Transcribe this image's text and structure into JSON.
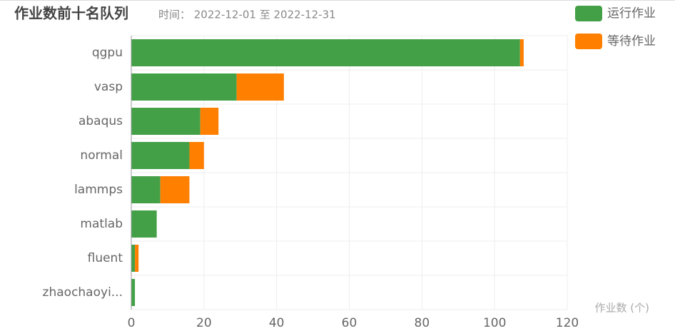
{
  "chart_data": {
    "type": "stacked-barh",
    "title": "作业数前十名队列",
    "subtitle": "时间： 2022-12-01 至 2022-12-31",
    "x_label": "作业数 (个)",
    "categories": [
      "qgpu",
      "vasp",
      "abaqus",
      "normal",
      "lammps",
      "matlab",
      "fluent",
      "zhaochaoyi..."
    ],
    "series": [
      {
        "name": "运行作业",
        "color": "#43a047",
        "values": [
          107,
          29,
          19,
          16,
          8,
          7,
          1,
          1
        ]
      },
      {
        "name": "等待作业",
        "color": "#ff7f00",
        "values": [
          1,
          13,
          5,
          4,
          8,
          0,
          1,
          0
        ]
      }
    ],
    "xlim": [
      0,
      120
    ],
    "xticks": [
      0,
      20,
      40,
      60,
      80,
      100,
      120
    ],
    "grid": true
  }
}
